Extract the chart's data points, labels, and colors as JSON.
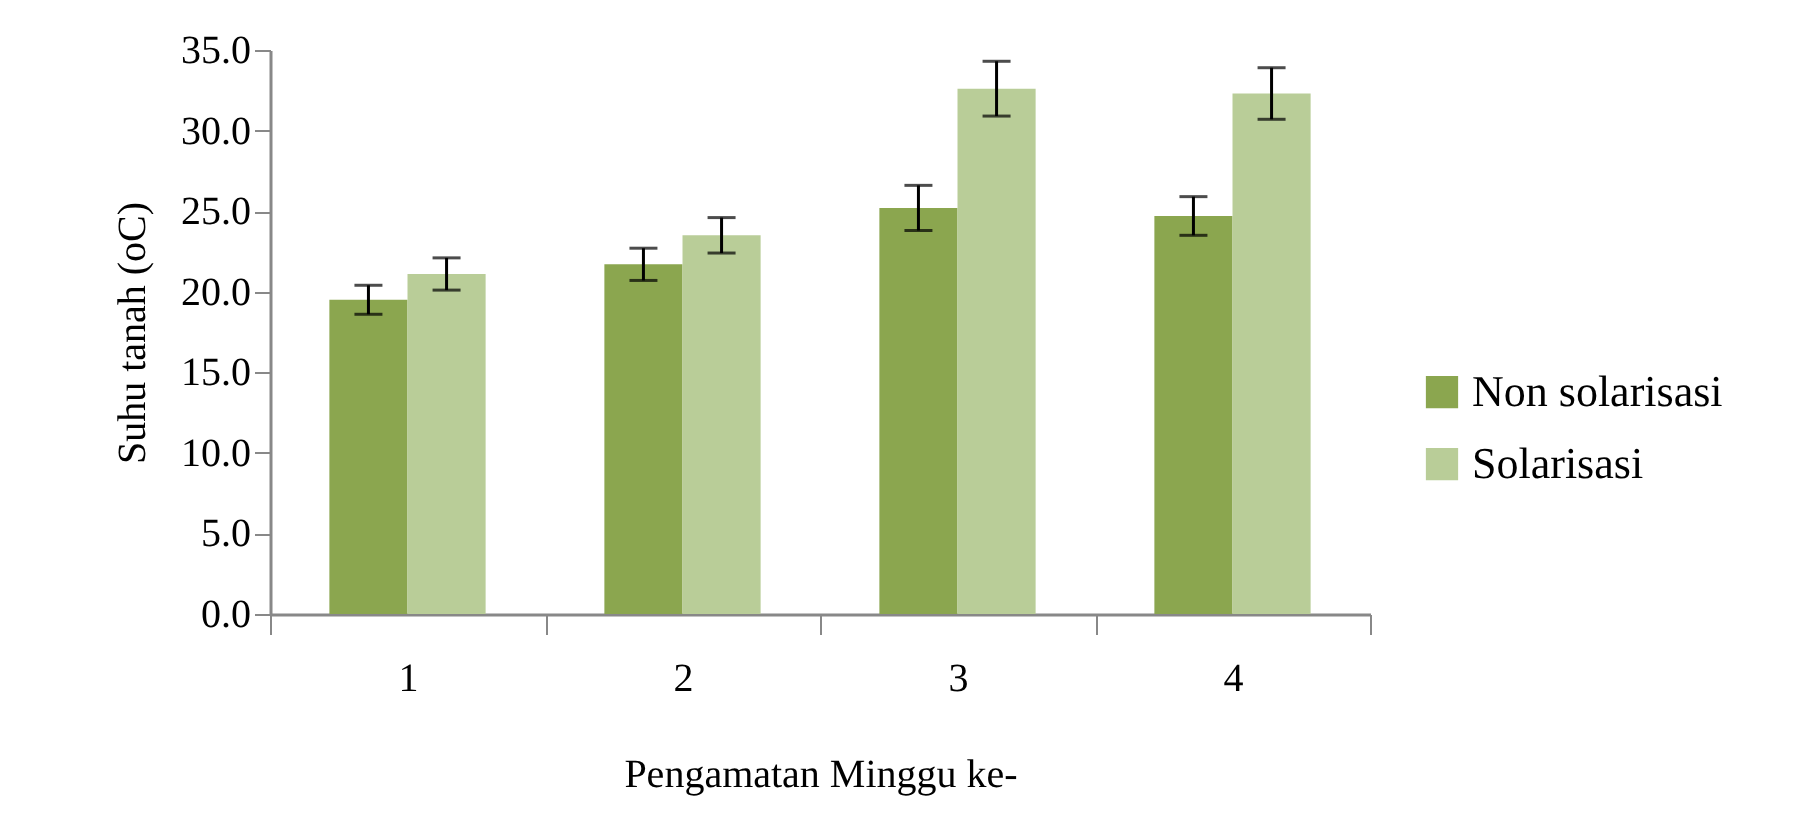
{
  "chart_data": {
    "type": "bar",
    "xlabel": "Pengamatan Minggu ke-",
    "ylabel": "Suhu tanah (oC)",
    "categories": [
      "1",
      "2",
      "3",
      "4"
    ],
    "series": [
      {
        "name": "Non solarisasi",
        "color": "#8ba64f",
        "values": [
          19.5,
          21.7,
          25.2,
          24.7
        ],
        "errors": [
          0.9,
          1.0,
          1.4,
          1.2
        ]
      },
      {
        "name": "Solarisasi",
        "color": "#b9cd98",
        "values": [
          21.1,
          23.5,
          32.6,
          32.3
        ],
        "errors": [
          1.0,
          1.1,
          1.7,
          1.6
        ]
      }
    ],
    "ylim": [
      0,
      35
    ],
    "yticks": [
      {
        "value": 0,
        "label": "0.0"
      },
      {
        "value": 5,
        "label": "5.0"
      },
      {
        "value": 10,
        "label": "10.0"
      },
      {
        "value": 15,
        "label": "15.0"
      },
      {
        "value": 20,
        "label": "20.0"
      },
      {
        "value": 25,
        "label": "25.0"
      },
      {
        "value": 30,
        "label": "30.0"
      },
      {
        "value": 35,
        "label": "35.0"
      }
    ],
    "grid": false,
    "legend": "right"
  }
}
